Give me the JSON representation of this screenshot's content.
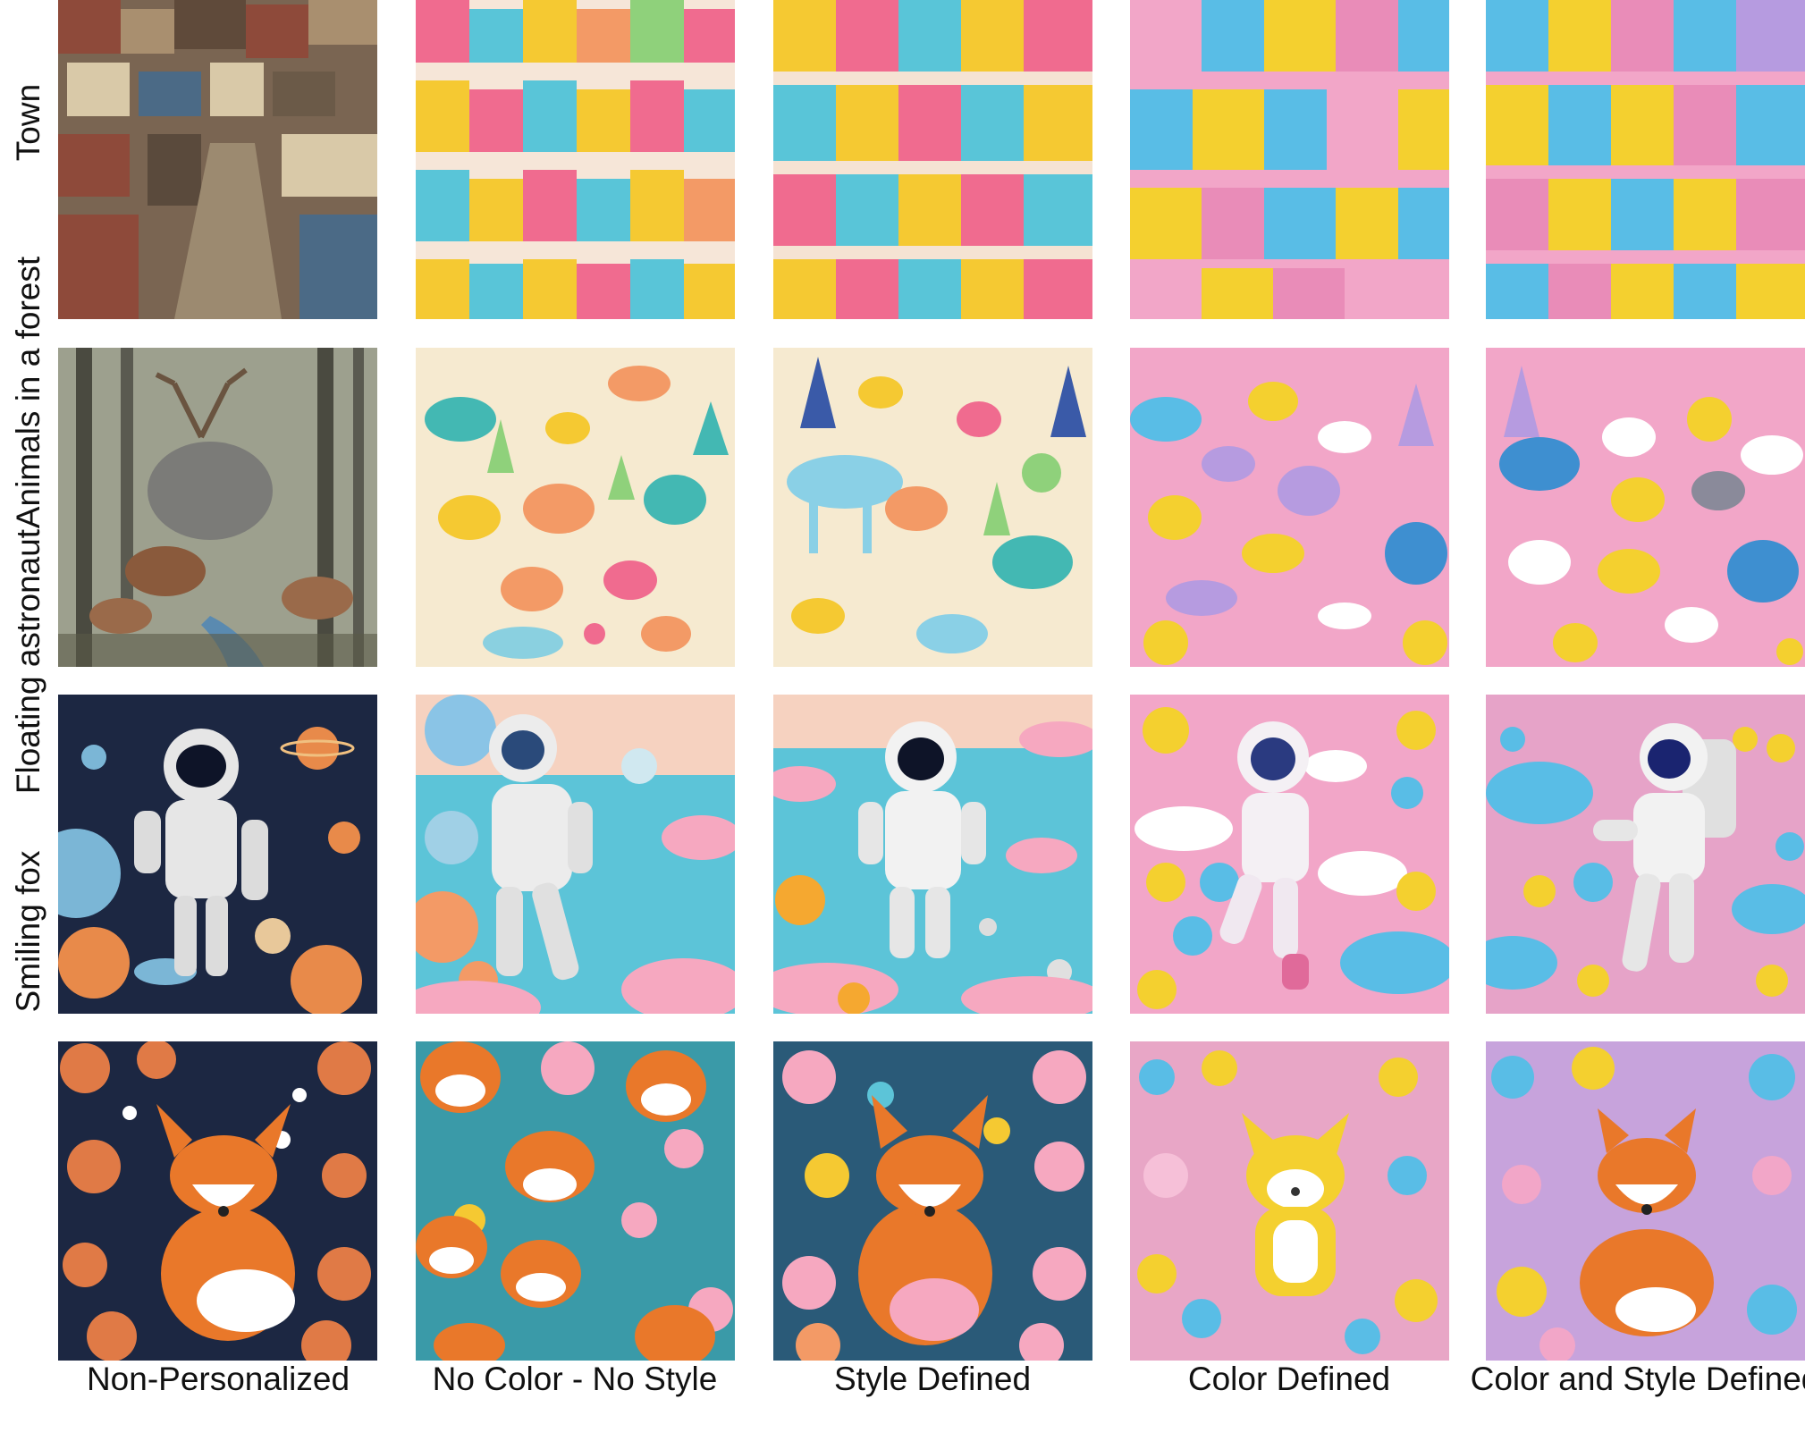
{
  "rows": [
    {
      "label": "Town"
    },
    {
      "label": "Animals in a forest"
    },
    {
      "label": "Floating astronaut"
    },
    {
      "label": "Smiling fox"
    }
  ],
  "columns": [
    {
      "label": "Non-Personalized"
    },
    {
      "label": "No Color - No Style"
    },
    {
      "label": "Style Defined"
    },
    {
      "label": "Color Defined"
    },
    {
      "label": "Color and Style Defined"
    }
  ],
  "palette": {
    "nonpersonalized_town": [
      "#6b5a48",
      "#8e4a3a",
      "#a98f6f",
      "#4b6a86",
      "#d9c9a8"
    ],
    "bright": [
      "#f06b8f",
      "#59c5d8",
      "#f5c932",
      "#f39a66",
      "#8fd17b"
    ],
    "pink": [
      "#f2a6c8",
      "#59bde6",
      "#f4d02f",
      "#b69be0",
      "#ffffff"
    ],
    "space_bg": "#1c2742",
    "fox_orange": "#e9782a"
  }
}
